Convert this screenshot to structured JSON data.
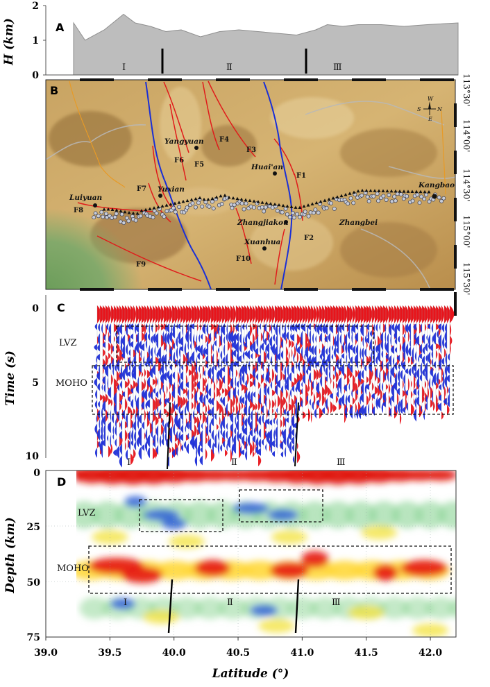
{
  "figure": {
    "panel_labels": [
      "A",
      "B",
      "C",
      "D"
    ],
    "zone_labels": [
      "Ⅰ",
      "Ⅱ",
      "Ⅲ"
    ],
    "colors": {
      "fault": "#e01b1b",
      "boundary": "#1a2fd6",
      "positive": "#e8141b",
      "negative": "#1e2ed8"
    }
  },
  "panel_a": {
    "ylabel": "H (km)",
    "yticks": [
      "2",
      "1",
      "0"
    ]
  },
  "panel_b": {
    "right_coords": [
      "113°30'",
      "114°00'",
      "114°30'",
      "115°00'",
      "115°30'"
    ],
    "compass": {
      "w": "W",
      "s": "S",
      "n": "N",
      "e": "E"
    },
    "towns": [
      "Yangyuan",
      "Huai'an",
      "Yuxian",
      "Luiyuan",
      "Zhangjiakou",
      "Zhangbei",
      "Xuanhua",
      "Kangbao"
    ],
    "faults": [
      "F1",
      "F2",
      "F3",
      "F4",
      "F5",
      "F6",
      "F7",
      "F8",
      "F9",
      "F10"
    ]
  },
  "panel_c": {
    "ylabel": "Time (s)",
    "yticks": [
      "0",
      "5",
      "10"
    ],
    "boxes": [
      "LVZ",
      "MOHO"
    ]
  },
  "panel_d": {
    "ylabel": "Depth (km)",
    "yticks": [
      "0",
      "25",
      "50",
      "75"
    ],
    "boxes": [
      "LVZ",
      "MOHO"
    ]
  },
  "chart_data": [
    {
      "type": "area",
      "panel": "A",
      "ylabel": "H (km)",
      "ylim": [
        0,
        2
      ],
      "x": [
        0,
        0.03,
        0.08,
        0.13,
        0.16,
        0.2,
        0.24,
        0.28,
        0.33,
        0.38,
        0.43,
        0.48,
        0.53,
        0.58,
        0.63,
        0.66,
        0.7,
        0.74,
        0.8,
        0.86,
        0.92,
        1
      ],
      "values": [
        1.5,
        1.0,
        1.3,
        1.75,
        1.5,
        1.4,
        1.25,
        1.3,
        1.1,
        1.25,
        1.3,
        1.25,
        1.2,
        1.15,
        1.3,
        1.45,
        1.4,
        1.45,
        1.45,
        1.4,
        1.45,
        1.5
      ]
    },
    {
      "type": "heatmap",
      "panel": "D",
      "xlabel": "Latitude (°)",
      "ylabel": "Depth (km)",
      "xlim": [
        39.0,
        42.2
      ],
      "ylim": [
        75,
        0
      ],
      "xticks": [
        "39.0",
        "39.5",
        "40.0",
        "40.5",
        "41.0",
        "41.5",
        "42.0"
      ],
      "yticks": [
        "0",
        "25",
        "50",
        "75"
      ]
    }
  ]
}
